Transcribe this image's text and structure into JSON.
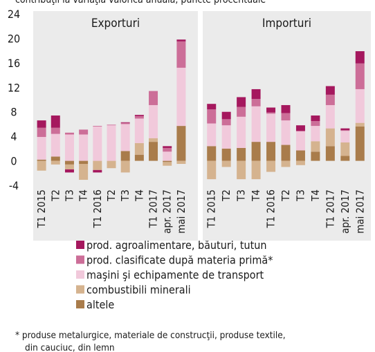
{
  "chart_data": {
    "type": "bar",
    "stacked": true,
    "subtitle": "contribuţii la variaţia valorică anuală, puncte procentuale",
    "ylim": [
      -4,
      24
    ],
    "yticks": [
      -4,
      0,
      4,
      8,
      12,
      16,
      20,
      24
    ],
    "grid": false,
    "categories": [
      "T1 2015",
      "T2",
      "T3",
      "T4",
      "T1 2016",
      "T2",
      "T3",
      "T4",
      "T1 2017",
      "apr. 2017",
      "mai 2017"
    ],
    "series": [
      {
        "name": "altele",
        "color": "#a97c4b"
      },
      {
        "name": "combustibili minerali",
        "color": "#d5b38f"
      },
      {
        "name": "maşini şi echipamente de transport",
        "color": "#f1c9db"
      },
      {
        "name": "prod. clasificate după materia primă*",
        "color": "#cc6e98"
      },
      {
        "name": "prod. agroalimentare, băuturi, tutun",
        "color": "#a5185e"
      }
    ],
    "panels": [
      {
        "title": "Exporturi",
        "series": [
          {
            "values": [
              0.2,
              0.7,
              -0.6,
              -0.5,
              0,
              0,
              1.6,
              1.0,
              3.1,
              -0.2,
              5.7
            ]
          },
          {
            "values": [
              -1.6,
              -0.6,
              -0.8,
              -2.6,
              -1.5,
              -1.2,
              -1.9,
              1.9,
              0.6,
              -0.6,
              -0.5
            ]
          },
          {
            "values": [
              3.7,
              3.7,
              4.3,
              4.3,
              5.6,
              5.8,
              4.4,
              4.0,
              5.4,
              1.5,
              9.5
            ]
          },
          {
            "values": [
              1.5,
              1.0,
              0.3,
              0.8,
              0.1,
              0.1,
              0.2,
              0.4,
              2.3,
              0.6,
              4.3
            ]
          },
          {
            "values": [
              1.2,
              2.0,
              -0.5,
              0,
              -0.4,
              0,
              0.1,
              0.2,
              0,
              0.3,
              0.3
            ]
          }
        ]
      },
      {
        "title": "Importuri",
        "series": [
          {
            "values": [
              2.4,
              2.0,
              2.1,
              3.1,
              3.1,
              2.6,
              1.7,
              1.5,
              2.4,
              0.8,
              5.6
            ]
          },
          {
            "values": [
              -3.0,
              -1.0,
              -3.0,
              -3.0,
              -1.8,
              -1.0,
              -0.7,
              1.7,
              2.9,
              2.2,
              0.6
            ]
          },
          {
            "values": [
              3.7,
              3.8,
              5.1,
              5.8,
              4.6,
              4.0,
              3.1,
              2.5,
              3.8,
              1.9,
              5.5
            ]
          },
          {
            "values": [
              2.3,
              1.0,
              1.6,
              1.2,
              0.2,
              1.2,
              0.1,
              0.8,
              1.7,
              0.1,
              4.2
            ]
          },
          {
            "values": [
              0.9,
              1.2,
              1.6,
              1.6,
              0.8,
              1.3,
              0.9,
              0.9,
              1.4,
              0.3,
              2.0
            ]
          }
        ]
      }
    ],
    "legend_order": [
      4,
      3,
      2,
      1,
      0
    ],
    "footnote": [
      "* produse metalurgice, materiale de construcţii, produse textile,",
      "din cauciuc, din lemn"
    ]
  }
}
